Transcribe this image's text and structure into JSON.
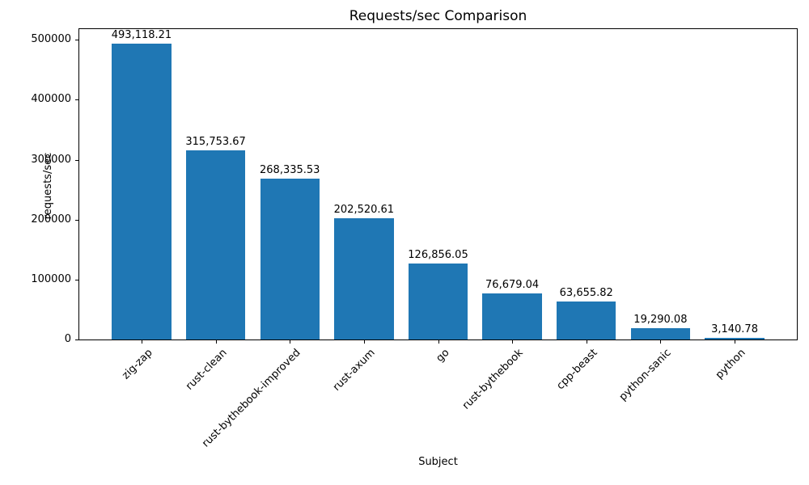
{
  "chart_data": {
    "type": "bar",
    "title": "Requests/sec Comparison",
    "xlabel": "Subject",
    "ylabel": "requests/sec",
    "categories": [
      "zig-zap",
      "rust-clean",
      "rust-bythebook-improved",
      "rust-axum",
      "go",
      "rust-bythebook",
      "cpp-beast",
      "python-sanic",
      "python"
    ],
    "values": [
      493118.21,
      315753.67,
      268335.53,
      202520.61,
      126856.05,
      76679.04,
      63655.82,
      19290.08,
      3140.78
    ],
    "value_labels": [
      "493,118.21",
      "315,753.67",
      "268,335.53",
      "202,520.61",
      "126,856.05",
      "76,679.04",
      "63,655.82",
      "19,290.08",
      "3,140.78"
    ],
    "bar_color": "#1f77b4",
    "bar_width": 0.8,
    "ylim": [
      0,
      517774
    ],
    "yticks": [
      0,
      100000,
      200000,
      300000,
      400000,
      500000
    ],
    "ytick_labels": [
      "0",
      "100000",
      "200000",
      "300000",
      "400000",
      "500000"
    ],
    "grid": false,
    "legend": null
  }
}
